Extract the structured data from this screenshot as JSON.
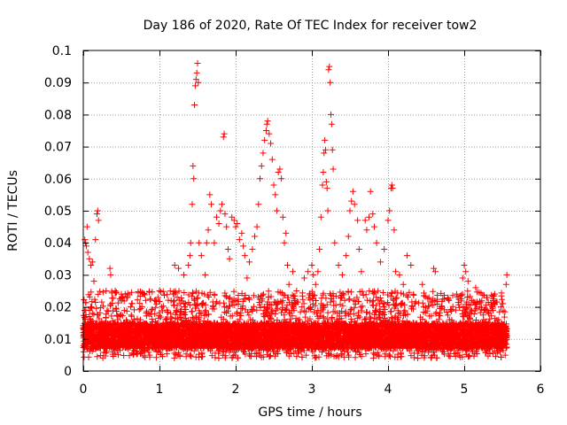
{
  "chart_data": {
    "type": "scatter",
    "title": "Day 186 of 2020, Rate Of TEC Index for receiver tow2",
    "xlabel": "GPS time / hours",
    "ylabel": "ROTI / TECUs",
    "xlim": [
      0,
      6
    ],
    "ylim": [
      0,
      0.1
    ],
    "xticks": [
      0,
      1,
      2,
      3,
      4,
      5,
      6
    ],
    "xtick_labels": [
      "0",
      "1",
      "2",
      "3",
      "4",
      "5",
      "6"
    ],
    "yticks": [
      0,
      0.01,
      0.02,
      0.03,
      0.04,
      0.05,
      0.06,
      0.07,
      0.08,
      0.09,
      0.1
    ],
    "ytick_labels": [
      "0",
      "0.01",
      "0.02",
      "0.03",
      "0.04",
      "0.05",
      "0.06",
      "0.07",
      "0.08",
      "0.09",
      "0.1"
    ],
    "grid": true,
    "marker": "+",
    "marker_color": "#ff0000",
    "series": [
      {
        "name": "ROTI",
        "points": [
          [
            0.0,
            0.012
          ],
          [
            0.02,
            0.041
          ],
          [
            0.03,
            0.04
          ],
          [
            0.04,
            0.039
          ],
          [
            0.05,
            0.045
          ],
          [
            0.06,
            0.037
          ],
          [
            0.08,
            0.035
          ],
          [
            0.1,
            0.033
          ],
          [
            0.12,
            0.034
          ],
          [
            0.14,
            0.028
          ],
          [
            0.16,
            0.041
          ],
          [
            0.18,
            0.049
          ],
          [
            0.19,
            0.05
          ],
          [
            0.2,
            0.047
          ],
          [
            0.08,
            0.019
          ],
          [
            0.1,
            0.02
          ],
          [
            0.12,
            0.018
          ],
          [
            0.3,
            0.025
          ],
          [
            0.35,
            0.032
          ],
          [
            0.36,
            0.03
          ],
          [
            0.55,
            0.024
          ],
          [
            0.58,
            0.023
          ],
          [
            0.75,
            0.016
          ],
          [
            0.85,
            0.018
          ],
          [
            0.95,
            0.022
          ],
          [
            1.0,
            0.025
          ],
          [
            1.1,
            0.019
          ],
          [
            1.18,
            0.024
          ],
          [
            1.2,
            0.033
          ],
          [
            1.25,
            0.032
          ],
          [
            1.32,
            0.03
          ],
          [
            1.38,
            0.033
          ],
          [
            1.4,
            0.036
          ],
          [
            1.41,
            0.04
          ],
          [
            1.43,
            0.052
          ],
          [
            1.44,
            0.064
          ],
          [
            1.45,
            0.06
          ],
          [
            1.46,
            0.083
          ],
          [
            1.47,
            0.089
          ],
          [
            1.48,
            0.091
          ],
          [
            1.49,
            0.093
          ],
          [
            1.5,
            0.096
          ],
          [
            1.51,
            0.09
          ],
          [
            1.52,
            0.04
          ],
          [
            1.55,
            0.036
          ],
          [
            1.6,
            0.03
          ],
          [
            1.62,
            0.04
          ],
          [
            1.64,
            0.044
          ],
          [
            1.66,
            0.055
          ],
          [
            1.68,
            0.052
          ],
          [
            1.72,
            0.04
          ],
          [
            1.75,
            0.048
          ],
          [
            1.78,
            0.046
          ],
          [
            1.8,
            0.05
          ],
          [
            1.82,
            0.052
          ],
          [
            1.84,
            0.073
          ],
          [
            1.85,
            0.074
          ],
          [
            1.86,
            0.049
          ],
          [
            1.88,
            0.045
          ],
          [
            1.9,
            0.038
          ],
          [
            1.92,
            0.035
          ],
          [
            1.95,
            0.048
          ],
          [
            1.98,
            0.047
          ],
          [
            2.0,
            0.045
          ],
          [
            2.02,
            0.046
          ],
          [
            2.05,
            0.041
          ],
          [
            2.08,
            0.043
          ],
          [
            2.1,
            0.039
          ],
          [
            2.12,
            0.036
          ],
          [
            2.15,
            0.029
          ],
          [
            2.18,
            0.034
          ],
          [
            2.22,
            0.038
          ],
          [
            2.25,
            0.042
          ],
          [
            2.28,
            0.045
          ],
          [
            2.3,
            0.052
          ],
          [
            2.32,
            0.06
          ],
          [
            2.34,
            0.064
          ],
          [
            2.36,
            0.068
          ],
          [
            2.38,
            0.072
          ],
          [
            2.4,
            0.075
          ],
          [
            2.41,
            0.077
          ],
          [
            2.42,
            0.078
          ],
          [
            2.44,
            0.074
          ],
          [
            2.46,
            0.071
          ],
          [
            2.48,
            0.066
          ],
          [
            2.5,
            0.058
          ],
          [
            2.52,
            0.055
          ],
          [
            2.54,
            0.05
          ],
          [
            2.56,
            0.062
          ],
          [
            2.58,
            0.063
          ],
          [
            2.6,
            0.06
          ],
          [
            2.62,
            0.048
          ],
          [
            2.64,
            0.04
          ],
          [
            2.66,
            0.043
          ],
          [
            2.68,
            0.033
          ],
          [
            2.7,
            0.027
          ],
          [
            2.75,
            0.031
          ],
          [
            2.8,
            0.025
          ],
          [
            2.9,
            0.029
          ],
          [
            2.95,
            0.031
          ],
          [
            3.0,
            0.033
          ],
          [
            3.02,
            0.03
          ],
          [
            3.05,
            0.027
          ],
          [
            3.08,
            0.031
          ],
          [
            3.1,
            0.038
          ],
          [
            3.12,
            0.048
          ],
          [
            3.14,
            0.058
          ],
          [
            3.15,
            0.062
          ],
          [
            3.16,
            0.068
          ],
          [
            3.17,
            0.072
          ],
          [
            3.18,
            0.069
          ],
          [
            3.19,
            0.059
          ],
          [
            3.2,
            0.057
          ],
          [
            3.21,
            0.05
          ],
          [
            3.22,
            0.094
          ],
          [
            3.23,
            0.095
          ],
          [
            3.24,
            0.09
          ],
          [
            3.25,
            0.08
          ],
          [
            3.26,
            0.077
          ],
          [
            3.27,
            0.069
          ],
          [
            3.28,
            0.063
          ],
          [
            3.3,
            0.04
          ],
          [
            3.35,
            0.033
          ],
          [
            3.4,
            0.03
          ],
          [
            3.45,
            0.036
          ],
          [
            3.48,
            0.042
          ],
          [
            3.5,
            0.05
          ],
          [
            3.52,
            0.053
          ],
          [
            3.54,
            0.056
          ],
          [
            3.56,
            0.052
          ],
          [
            3.6,
            0.047
          ],
          [
            3.62,
            0.038
          ],
          [
            3.65,
            0.031
          ],
          [
            3.7,
            0.047
          ],
          [
            3.72,
            0.044
          ],
          [
            3.75,
            0.048
          ],
          [
            3.77,
            0.056
          ],
          [
            3.8,
            0.049
          ],
          [
            3.82,
            0.045
          ],
          [
            3.85,
            0.04
          ],
          [
            3.9,
            0.034
          ],
          [
            3.95,
            0.038
          ],
          [
            4.0,
            0.047
          ],
          [
            4.02,
            0.05
          ],
          [
            4.04,
            0.057
          ],
          [
            4.05,
            0.058
          ],
          [
            4.06,
            0.057
          ],
          [
            4.08,
            0.044
          ],
          [
            4.1,
            0.031
          ],
          [
            4.15,
            0.03
          ],
          [
            4.2,
            0.027
          ],
          [
            4.25,
            0.036
          ],
          [
            4.3,
            0.033
          ],
          [
            4.35,
            0.021
          ],
          [
            4.45,
            0.027
          ],
          [
            4.6,
            0.032
          ],
          [
            4.62,
            0.031
          ],
          [
            4.7,
            0.02
          ],
          [
            4.8,
            0.022
          ],
          [
            4.9,
            0.024
          ],
          [
            4.98,
            0.029
          ],
          [
            5.0,
            0.033
          ],
          [
            5.02,
            0.031
          ],
          [
            5.05,
            0.028
          ],
          [
            5.1,
            0.022
          ],
          [
            5.15,
            0.026
          ],
          [
            5.2,
            0.02
          ],
          [
            5.3,
            0.019
          ],
          [
            5.4,
            0.024
          ],
          [
            5.5,
            0.021
          ],
          [
            5.55,
            0.027
          ],
          [
            5.56,
            0.03
          ]
        ],
        "baseline_band": {
          "x_range": [
            0,
            5.56
          ],
          "typical_range": [
            0.004,
            0.025
          ],
          "dense_core": [
            0.007,
            0.015
          ]
        }
      }
    ]
  }
}
